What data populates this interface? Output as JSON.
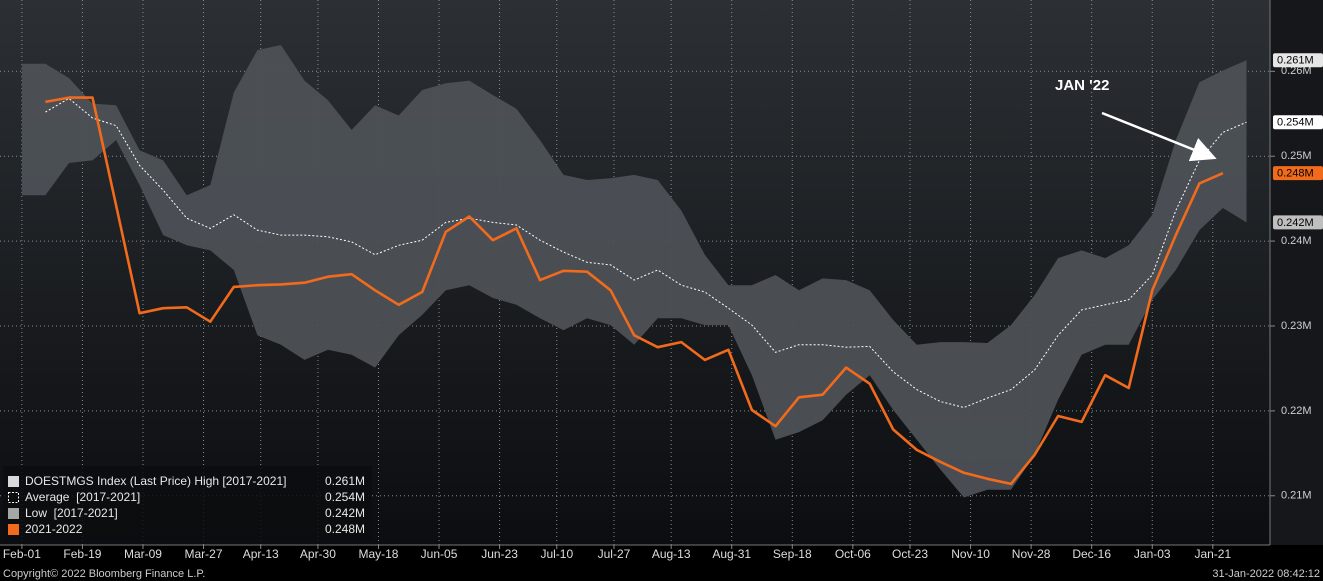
{
  "chart_data": {
    "type": "line",
    "x": [
      0,
      7,
      14,
      21,
      28,
      35,
      42,
      49,
      56,
      63,
      70,
      77,
      84,
      91,
      98,
      105,
      112,
      119,
      126,
      133,
      140,
      147,
      154,
      161,
      168,
      175,
      182,
      189,
      196,
      203,
      210,
      217,
      224,
      231,
      238,
      245,
      252,
      259,
      266,
      273,
      280,
      287,
      294,
      301,
      308,
      315,
      322,
      329,
      336,
      343,
      350,
      357,
      364
    ],
    "xlim": [
      -6.5,
      371
    ],
    "xticks": [
      {
        "value": 0,
        "label": "Feb-01"
      },
      {
        "value": 18,
        "label": "Feb-19"
      },
      {
        "value": 36,
        "label": "Mar-09"
      },
      {
        "value": 54,
        "label": "Mar-27"
      },
      {
        "value": 71,
        "label": "Apr-13"
      },
      {
        "value": 88,
        "label": "Apr-30"
      },
      {
        "value": 106,
        "label": "May-18"
      },
      {
        "value": 124,
        "label": "Jun-05"
      },
      {
        "value": 142,
        "label": "Jun-23"
      },
      {
        "value": 159,
        "label": "Jul-10"
      },
      {
        "value": 176,
        "label": "Jul-27"
      },
      {
        "value": 193,
        "label": "Aug-13"
      },
      {
        "value": 211,
        "label": "Aug-31"
      },
      {
        "value": 229,
        "label": "Sep-18"
      },
      {
        "value": 247,
        "label": "Oct-06"
      },
      {
        "value": 264,
        "label": "Oct-23"
      },
      {
        "value": 282,
        "label": "Nov-10"
      },
      {
        "value": 300,
        "label": "Nov-28"
      },
      {
        "value": 318,
        "label": "Dec-16"
      },
      {
        "value": 336,
        "label": "Jan-03"
      },
      {
        "value": 354,
        "label": "Jan-21"
      }
    ],
    "ylim": [
      0.2042,
      0.2684
    ],
    "yticks": [
      {
        "value": 0.21,
        "label": "0.21M"
      },
      {
        "value": 0.22,
        "label": "0.22M"
      },
      {
        "value": 0.23,
        "label": "0.23M"
      },
      {
        "value": 0.24,
        "label": "0.24M"
      },
      {
        "value": 0.25,
        "label": "0.25M"
      },
      {
        "value": 0.26,
        "label": "0.26M"
      }
    ],
    "grid": true,
    "band_color": "#4d5156",
    "series": [
      {
        "name": "DOESTMGS Index (Last Price) High [2017-2021]",
        "legend_value": "0.261M",
        "color": "#d9d9d9",
        "values": [
          0.2609,
          0.2609,
          0.2592,
          0.2562,
          0.256,
          0.2507,
          0.2495,
          0.2454,
          0.2466,
          0.2575,
          0.2625,
          0.2631,
          0.2589,
          0.2566,
          0.2531,
          0.256,
          0.2548,
          0.2578,
          0.2586,
          0.2589,
          0.2572,
          0.2556,
          0.2519,
          0.2478,
          0.2472,
          0.2474,
          0.2478,
          0.2472,
          0.2436,
          0.2384,
          0.2348,
          0.2348,
          0.236,
          0.2342,
          0.2356,
          0.2354,
          0.2342,
          0.2307,
          0.2278,
          0.2281,
          0.2281,
          0.228,
          0.2301,
          0.2336,
          0.238,
          0.2389,
          0.238,
          0.2395,
          0.2431,
          0.2519,
          0.2587,
          0.2601,
          0.2613
        ]
      },
      {
        "name": "Average  [2017-2021]",
        "legend_value": "0.254M",
        "color": "#ffffff",
        "values": [
          null,
          0.2552,
          0.2568,
          0.2545,
          0.2536,
          0.2489,
          0.246,
          0.2427,
          0.2415,
          0.2431,
          0.2413,
          0.2407,
          0.2407,
          0.2405,
          0.2399,
          0.2384,
          0.2395,
          0.2401,
          0.2422,
          0.2427,
          0.2422,
          0.2419,
          0.2401,
          0.2387,
          0.2375,
          0.2372,
          0.2354,
          0.2366,
          0.2348,
          0.234,
          0.2321,
          0.2301,
          0.2269,
          0.2278,
          0.2278,
          0.2275,
          0.2276,
          0.2246,
          0.2225,
          0.2211,
          0.2204,
          0.2215,
          0.2225,
          0.2248,
          0.2289,
          0.2319,
          0.2325,
          0.2331,
          0.236,
          0.2436,
          0.2495,
          0.2528,
          0.254
        ]
      },
      {
        "name": "Low  [2017-2021]",
        "legend_value": "0.242M",
        "color": "#a6a6a6",
        "values": [
          0.2454,
          0.2454,
          0.2492,
          0.2495,
          0.2519,
          0.2466,
          0.2407,
          0.2395,
          0.2389,
          0.2366,
          0.2289,
          0.2278,
          0.226,
          0.2272,
          0.2266,
          0.2251,
          0.2289,
          0.2313,
          0.2342,
          0.2348,
          0.2333,
          0.2325,
          0.2309,
          0.2295,
          0.2309,
          0.2301,
          0.2278,
          0.2309,
          0.2309,
          0.2301,
          0.2301,
          0.2242,
          0.2166,
          0.2175,
          0.2189,
          0.2219,
          0.2242,
          0.2201,
          0.2166,
          0.2131,
          0.2098,
          0.2107,
          0.2107,
          0.2148,
          0.2213,
          0.2266,
          0.2278,
          0.2278,
          0.2331,
          0.2366,
          0.2413,
          0.2439,
          0.2422
        ]
      },
      {
        "name": "2021-2022",
        "legend_value": "0.248M",
        "color": "#f26a1b",
        "values": [
          null,
          0.2564,
          0.2569,
          0.2569,
          0.2442,
          0.2315,
          0.2321,
          0.2322,
          0.2305,
          0.2346,
          0.2348,
          0.2349,
          0.2351,
          0.2358,
          0.2361,
          0.2342,
          0.2325,
          0.234,
          0.2411,
          0.2429,
          0.2401,
          0.2415,
          0.2354,
          0.2365,
          0.2364,
          0.2342,
          0.2289,
          0.2275,
          0.2281,
          0.226,
          0.2272,
          0.2201,
          0.2182,
          0.2216,
          0.2219,
          0.2251,
          0.2232,
          0.2178,
          0.2154,
          0.214,
          0.2127,
          0.212,
          0.2114,
          0.2148,
          0.2194,
          0.2187,
          0.2242,
          0.2227,
          0.2342,
          0.2407,
          0.2468,
          0.248,
          null
        ]
      }
    ],
    "annotation": "JAN '22",
    "footer_left": "Copyright© 2022 Bloomberg Finance L.P.",
    "footer_right": "31-Jan-2022 08:42:12"
  }
}
